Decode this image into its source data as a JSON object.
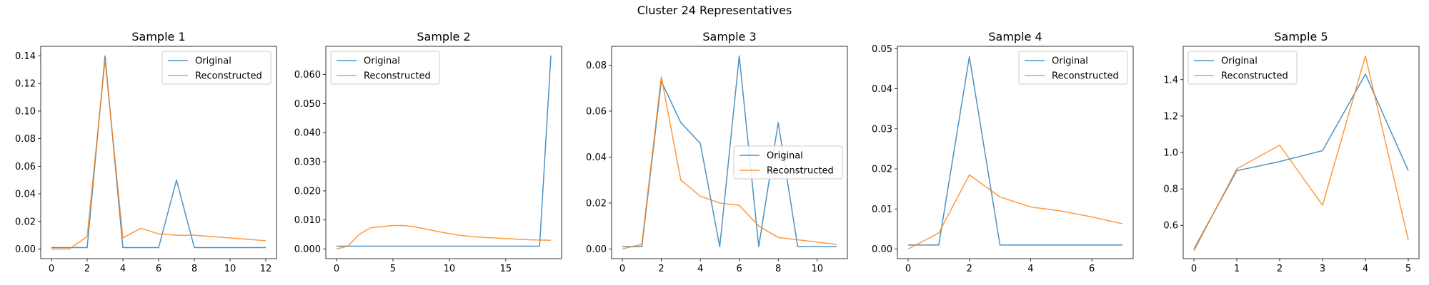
{
  "figure_title": "Cluster 24 Representatives",
  "colors": {
    "original": "#1f77b4",
    "reconstructed": "#ff7f0e"
  },
  "chart_data": [
    {
      "type": "line",
      "title": "Sample 1",
      "xlim": [
        -0.6,
        12.6
      ],
      "ylim": [
        -0.007,
        0.147
      ],
      "xticks": [
        0,
        2,
        4,
        6,
        8,
        10,
        12
      ],
      "yticks": [
        0.0,
        0.02,
        0.04,
        0.06,
        0.08,
        0.1,
        0.12,
        0.14
      ],
      "tick_decimals": 2,
      "legend": "upper-right",
      "series": [
        {
          "name": "Original",
          "x": [
            0,
            1,
            2,
            3,
            4,
            5,
            6,
            7,
            8,
            9,
            10,
            11,
            12
          ],
          "values": [
            0.001,
            0.001,
            0.001,
            0.14,
            0.001,
            0.001,
            0.001,
            0.05,
            0.001,
            0.001,
            0.001,
            0.001,
            0.001
          ]
        },
        {
          "name": "Reconstructed",
          "x": [
            0,
            1,
            2,
            3,
            4,
            5,
            6,
            7,
            8,
            9,
            10,
            11,
            12
          ],
          "values": [
            0.0,
            0.0,
            0.009,
            0.137,
            0.008,
            0.015,
            0.011,
            0.01,
            0.01,
            0.009,
            0.008,
            0.007,
            0.006
          ]
        }
      ]
    },
    {
      "type": "line",
      "title": "Sample 2",
      "xlim": [
        -0.95,
        19.95
      ],
      "ylim": [
        -0.0033,
        0.0697
      ],
      "xticks": [
        0,
        5,
        10,
        15
      ],
      "yticks": [
        0.0,
        0.01,
        0.02,
        0.03,
        0.04,
        0.05,
        0.06
      ],
      "tick_decimals": 2,
      "legend": "upper-left",
      "series": [
        {
          "name": "Original",
          "x": [
            0,
            1,
            2,
            3,
            4,
            5,
            6,
            7,
            8,
            9,
            10,
            11,
            12,
            13,
            14,
            15,
            16,
            17,
            18,
            19
          ],
          "values": [
            0.001,
            0.001,
            0.001,
            0.001,
            0.001,
            0.001,
            0.001,
            0.001,
            0.001,
            0.001,
            0.001,
            0.001,
            0.001,
            0.001,
            0.001,
            0.001,
            0.001,
            0.001,
            0.001,
            0.0665
          ]
        },
        {
          "name": "Reconstructed",
          "x": [
            0,
            1,
            2,
            3,
            4,
            5,
            6,
            7,
            8,
            9,
            10,
            11,
            12,
            13,
            14,
            15,
            16,
            17,
            18,
            19
          ],
          "values": [
            0.0,
            0.001,
            0.005,
            0.0073,
            0.0077,
            0.0081,
            0.0081,
            0.0076,
            0.0068,
            0.006,
            0.0053,
            0.0047,
            0.0043,
            0.004,
            0.0038,
            0.0036,
            0.0034,
            0.0032,
            0.0031,
            0.003
          ]
        }
      ]
    },
    {
      "type": "line",
      "title": "Sample 3",
      "xlim": [
        -0.55,
        11.55
      ],
      "ylim": [
        -0.0042,
        0.0882
      ],
      "xticks": [
        0,
        2,
        4,
        6,
        8,
        10
      ],
      "yticks": [
        0.0,
        0.02,
        0.04,
        0.06,
        0.08
      ],
      "tick_decimals": 2,
      "legend": "center-right",
      "series": [
        {
          "name": "Original",
          "x": [
            0,
            1,
            2,
            3,
            4,
            5,
            6,
            7,
            8,
            9,
            10,
            11
          ],
          "values": [
            0.001,
            0.001,
            0.073,
            0.055,
            0.046,
            0.001,
            0.084,
            0.001,
            0.055,
            0.001,
            0.001,
            0.001
          ]
        },
        {
          "name": "Reconstructed",
          "x": [
            0,
            1,
            2,
            3,
            4,
            5,
            6,
            7,
            8,
            9,
            10,
            11
          ],
          "values": [
            0.0,
            0.002,
            0.075,
            0.03,
            0.023,
            0.02,
            0.019,
            0.01,
            0.005,
            0.004,
            0.003,
            0.002
          ]
        }
      ]
    },
    {
      "type": "line",
      "title": "Sample 4",
      "xlim": [
        -0.35,
        7.35
      ],
      "ylim": [
        -0.0024,
        0.0506
      ],
      "xticks": [
        0,
        2,
        4,
        6
      ],
      "yticks": [
        0.0,
        0.01,
        0.02,
        0.03,
        0.04,
        0.05
      ],
      "tick_decimals": 2,
      "legend": "upper-right",
      "series": [
        {
          "name": "Original",
          "x": [
            0,
            1,
            2,
            3,
            4,
            5,
            6,
            7
          ],
          "values": [
            0.001,
            0.001,
            0.048,
            0.001,
            0.001,
            0.001,
            0.001,
            0.001
          ]
        },
        {
          "name": "Reconstructed",
          "x": [
            0,
            1,
            2,
            3,
            4,
            5,
            6,
            7
          ],
          "values": [
            0.0,
            0.004,
            0.0185,
            0.013,
            0.0105,
            0.0095,
            0.008,
            0.0063
          ]
        }
      ]
    },
    {
      "type": "line",
      "title": "Sample 5",
      "xlim": [
        -0.25,
        5.25
      ],
      "ylim": [
        0.417,
        1.583
      ],
      "xticks": [
        0,
        1,
        2,
        3,
        4,
        5
      ],
      "yticks": [
        0.6,
        0.8,
        1.0,
        1.2,
        1.4
      ],
      "tick_decimals": 1,
      "legend": "upper-left",
      "series": [
        {
          "name": "Original",
          "x": [
            0,
            1,
            2,
            3,
            4,
            5
          ],
          "values": [
            0.47,
            0.9,
            0.95,
            1.01,
            1.43,
            0.9
          ]
        },
        {
          "name": "Reconstructed",
          "x": [
            0,
            1,
            2,
            3,
            4,
            5
          ],
          "values": [
            0.46,
            0.91,
            1.04,
            0.71,
            1.53,
            0.52
          ]
        }
      ]
    }
  ]
}
